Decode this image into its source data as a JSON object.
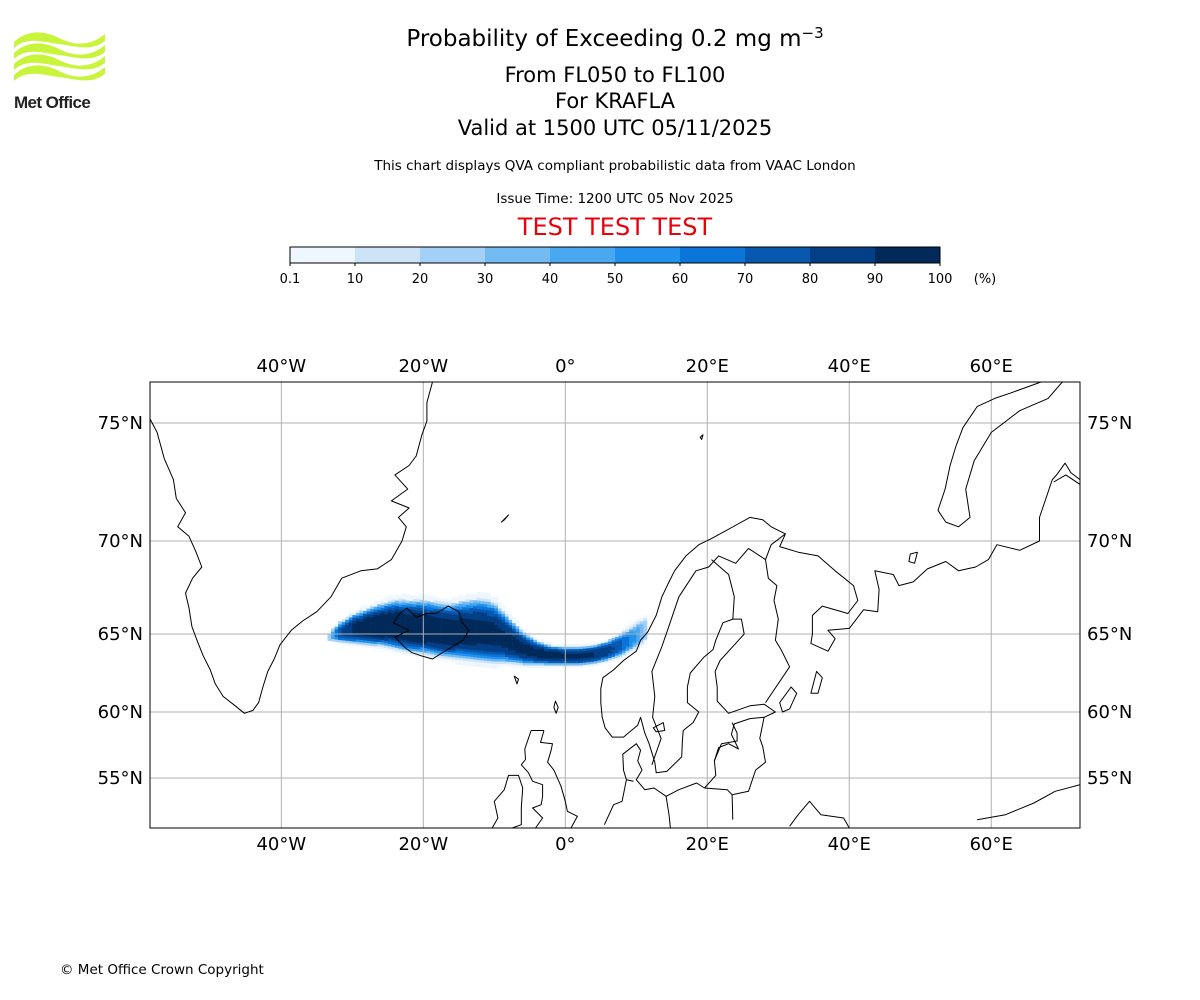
{
  "header": {
    "title_prefix": "Probability of Exceeding 0.2 mg m",
    "title_exponent": "−3",
    "flight_levels": "From FL050 to FL100",
    "volcano": "For KRAFLA",
    "valid_time": "Valid at 1500 UTC 05/11/2025",
    "description": "This chart displays QVA compliant probabilistic data from VAAC London",
    "issue_time": "Issue Time: 1200 UTC 05 Nov 2025",
    "test_banner": "TEST TEST TEST"
  },
  "logo": {
    "name": "Met Office",
    "wave_color": "#c8f53b"
  },
  "colorbar": {
    "tick_labels": [
      "0.1",
      "10",
      "20",
      "30",
      "40",
      "50",
      "60",
      "70",
      "80",
      "90",
      "100"
    ],
    "unit": "(%)",
    "colors": [
      "#eef6ff",
      "#cde4f8",
      "#a3d0f6",
      "#74baf3",
      "#4aa8f1",
      "#2191ee",
      "#0b74d8",
      "#0758ae",
      "#033f86",
      "#012a5a"
    ]
  },
  "map": {
    "projection": "plate carree",
    "lon_range": [
      -58.5,
      72.5
    ],
    "lat_range": [
      52.0,
      77.0
    ],
    "lon_ticks": [
      -40,
      -20,
      0,
      20,
      40,
      60
    ],
    "lat_ticks": [
      75,
      70,
      65,
      60,
      55
    ],
    "lon_tick_labels": [
      "40°W",
      "20°W",
      "0°",
      "20°E",
      "40°E",
      "60°E"
    ],
    "lat_tick_labels": [
      "75°N",
      "70°N",
      "65°N",
      "60°N",
      "55°N"
    ],
    "gridlines": true,
    "gridline_color": "#b0b0b0"
  },
  "chart_data": {
    "type": "heatmap",
    "title": "Probability of Exceeding 0.2 mg m−3",
    "variable": "Probability of exceeding 0.2 mg m−3 ash concentration, FL050–FL100",
    "units": "%",
    "plume": [
      {
        "lon": -33.5,
        "lat_min": 64.6,
        "lat_max": 65.0,
        "core": 20
      },
      {
        "lon": -32,
        "lat_min": 64.5,
        "lat_max": 65.6,
        "core": 75
      },
      {
        "lon": -30,
        "lat_min": 64.4,
        "lat_max": 66.1,
        "core": 92
      },
      {
        "lon": -28,
        "lat_min": 64.3,
        "lat_max": 66.4,
        "core": 97
      },
      {
        "lon": -26,
        "lat_min": 64.2,
        "lat_max": 66.7,
        "core": 98
      },
      {
        "lon": -24,
        "lat_min": 64.0,
        "lat_max": 66.9,
        "core": 98
      },
      {
        "lon": -22,
        "lat_min": 63.8,
        "lat_max": 66.9,
        "core": 98
      },
      {
        "lon": -20,
        "lat_min": 63.7,
        "lat_max": 66.9,
        "core": 98
      },
      {
        "lon": -18,
        "lat_min": 63.5,
        "lat_max": 66.8,
        "core": 97
      },
      {
        "lon": -16,
        "lat_min": 63.4,
        "lat_max": 66.7,
        "core": 96
      },
      {
        "lon": -14,
        "lat_min": 63.3,
        "lat_max": 66.9,
        "core": 95
      },
      {
        "lon": -12,
        "lat_min": 63.2,
        "lat_max": 67.0,
        "core": 93
      },
      {
        "lon": -10,
        "lat_min": 63.1,
        "lat_max": 66.8,
        "core": 92
      },
      {
        "lon": -8,
        "lat_min": 63.1,
        "lat_max": 66.0,
        "core": 92
      },
      {
        "lon": -6,
        "lat_min": 63.0,
        "lat_max": 65.2,
        "core": 92
      },
      {
        "lon": -4,
        "lat_min": 63.0,
        "lat_max": 64.6,
        "core": 92
      },
      {
        "lon": -2,
        "lat_min": 63.0,
        "lat_max": 64.3,
        "core": 92
      },
      {
        "lon": 0,
        "lat_min": 63.0,
        "lat_max": 64.2,
        "core": 92
      },
      {
        "lon": 2,
        "lat_min": 63.0,
        "lat_max": 64.2,
        "core": 92
      },
      {
        "lon": 4,
        "lat_min": 63.1,
        "lat_max": 64.3,
        "core": 90
      },
      {
        "lon": 6,
        "lat_min": 63.3,
        "lat_max": 64.6,
        "core": 85
      },
      {
        "lon": 8,
        "lat_min": 63.6,
        "lat_max": 65.1,
        "core": 72
      },
      {
        "lon": 10,
        "lat_min": 64.1,
        "lat_max": 65.6,
        "core": 50
      },
      {
        "lon": 11.5,
        "lat_min": 64.6,
        "lat_max": 66.0,
        "core": 25
      }
    ],
    "peak_region": [
      {
        "lon": -14,
        "lat": 66.2,
        "value": 96
      },
      {
        "lon": -12,
        "lat": 66.2,
        "value": 97
      }
    ]
  },
  "footer": {
    "copyright": "© Met Office Crown Copyright"
  }
}
